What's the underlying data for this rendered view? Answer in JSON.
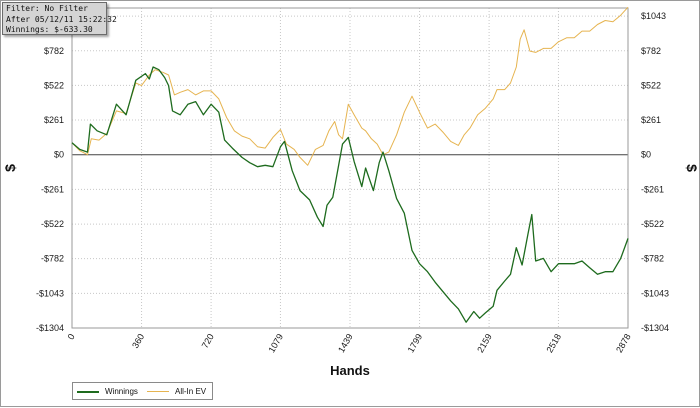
{
  "info_box": {
    "filter": "Filter: No Filter",
    "after": "After 05/12/11 15:22:32",
    "winnings": "Winnings: $-633.30"
  },
  "chart_data": {
    "type": "line",
    "xlabel": "Hands",
    "ylabel": "$",
    "xlim": [
      0,
      2878
    ],
    "ylim": [
      -1304,
      1104
    ],
    "x_ticks": [
      0,
      360,
      720,
      1079,
      1439,
      1799,
      2159,
      2518,
      2878
    ],
    "x_tick_labels": [
      "0",
      "360",
      "720",
      "1079",
      "1439",
      "1799",
      "2159",
      "2518",
      "2878"
    ],
    "y_ticks": [
      1043,
      782,
      522,
      261,
      0,
      -261,
      -522,
      -782,
      -1043,
      -1304
    ],
    "y_tick_labels": [
      "$1043",
      "$782",
      "$522",
      "$261",
      "$0",
      "-$261",
      "-$522",
      "-$782",
      "-$1043",
      "-$1304"
    ],
    "grid": true,
    "legend_position": "bottom-left",
    "series": [
      {
        "name": "Winnings",
        "color": "#1e6b1e",
        "points": [
          [
            0,
            90
          ],
          [
            40,
            40
          ],
          [
            80,
            20
          ],
          [
            95,
            230
          ],
          [
            130,
            180
          ],
          [
            180,
            150
          ],
          [
            230,
            380
          ],
          [
            280,
            300
          ],
          [
            330,
            560
          ],
          [
            380,
            610
          ],
          [
            400,
            570
          ],
          [
            420,
            660
          ],
          [
            450,
            640
          ],
          [
            480,
            580
          ],
          [
            500,
            520
          ],
          [
            520,
            330
          ],
          [
            560,
            300
          ],
          [
            600,
            380
          ],
          [
            640,
            400
          ],
          [
            680,
            300
          ],
          [
            720,
            380
          ],
          [
            760,
            320
          ],
          [
            790,
            110
          ],
          [
            830,
            50
          ],
          [
            880,
            -20
          ],
          [
            920,
            -60
          ],
          [
            960,
            -90
          ],
          [
            1000,
            -80
          ],
          [
            1040,
            -90
          ],
          [
            1079,
            60
          ],
          [
            1100,
            100
          ],
          [
            1140,
            -120
          ],
          [
            1180,
            -270
          ],
          [
            1230,
            -340
          ],
          [
            1270,
            -470
          ],
          [
            1300,
            -540
          ],
          [
            1320,
            -380
          ],
          [
            1350,
            -320
          ],
          [
            1400,
            80
          ],
          [
            1430,
            130
          ],
          [
            1460,
            -50
          ],
          [
            1500,
            -240
          ],
          [
            1520,
            -100
          ],
          [
            1560,
            -270
          ],
          [
            1590,
            -60
          ],
          [
            1610,
            20
          ],
          [
            1640,
            -120
          ],
          [
            1680,
            -330
          ],
          [
            1720,
            -440
          ],
          [
            1760,
            -720
          ],
          [
            1799,
            -820
          ],
          [
            1840,
            -880
          ],
          [
            1880,
            -960
          ],
          [
            1920,
            -1030
          ],
          [
            1960,
            -1100
          ],
          [
            2000,
            -1160
          ],
          [
            2040,
            -1260
          ],
          [
            2080,
            -1180
          ],
          [
            2110,
            -1230
          ],
          [
            2140,
            -1190
          ],
          [
            2180,
            -1140
          ],
          [
            2200,
            -1020
          ],
          [
            2240,
            -950
          ],
          [
            2270,
            -900
          ],
          [
            2300,
            -700
          ],
          [
            2330,
            -830
          ],
          [
            2360,
            -600
          ],
          [
            2380,
            -450
          ],
          [
            2400,
            -800
          ],
          [
            2440,
            -780
          ],
          [
            2480,
            -880
          ],
          [
            2518,
            -820
          ],
          [
            2560,
            -820
          ],
          [
            2600,
            -820
          ],
          [
            2640,
            -800
          ],
          [
            2680,
            -850
          ],
          [
            2720,
            -900
          ],
          [
            2760,
            -880
          ],
          [
            2800,
            -880
          ],
          [
            2840,
            -780
          ],
          [
            2878,
            -630
          ]
        ]
      },
      {
        "name": "All-In EV",
        "color": "#e6b450",
        "points": [
          [
            0,
            90
          ],
          [
            40,
            30
          ],
          [
            80,
            0
          ],
          [
            100,
            120
          ],
          [
            140,
            110
          ],
          [
            180,
            160
          ],
          [
            230,
            330
          ],
          [
            280,
            310
          ],
          [
            330,
            540
          ],
          [
            360,
            520
          ],
          [
            400,
            600
          ],
          [
            430,
            640
          ],
          [
            470,
            620
          ],
          [
            500,
            600
          ],
          [
            530,
            450
          ],
          [
            560,
            470
          ],
          [
            600,
            490
          ],
          [
            640,
            450
          ],
          [
            680,
            480
          ],
          [
            720,
            480
          ],
          [
            760,
            420
          ],
          [
            800,
            280
          ],
          [
            840,
            180
          ],
          [
            880,
            140
          ],
          [
            920,
            120
          ],
          [
            960,
            60
          ],
          [
            1000,
            50
          ],
          [
            1040,
            130
          ],
          [
            1079,
            190
          ],
          [
            1110,
            80
          ],
          [
            1150,
            40
          ],
          [
            1180,
            -20
          ],
          [
            1220,
            -80
          ],
          [
            1260,
            40
          ],
          [
            1300,
            70
          ],
          [
            1330,
            180
          ],
          [
            1360,
            250
          ],
          [
            1380,
            150
          ],
          [
            1400,
            120
          ],
          [
            1430,
            380
          ],
          [
            1460,
            300
          ],
          [
            1500,
            200
          ],
          [
            1520,
            180
          ],
          [
            1550,
            120
          ],
          [
            1580,
            80
          ],
          [
            1610,
            0
          ],
          [
            1640,
            20
          ],
          [
            1680,
            150
          ],
          [
            1720,
            320
          ],
          [
            1760,
            440
          ],
          [
            1799,
            320
          ],
          [
            1840,
            200
          ],
          [
            1880,
            230
          ],
          [
            1920,
            170
          ],
          [
            1960,
            100
          ],
          [
            2000,
            70
          ],
          [
            2030,
            150
          ],
          [
            2060,
            200
          ],
          [
            2100,
            300
          ],
          [
            2140,
            350
          ],
          [
            2180,
            420
          ],
          [
            2200,
            490
          ],
          [
            2240,
            490
          ],
          [
            2270,
            540
          ],
          [
            2300,
            660
          ],
          [
            2320,
            870
          ],
          [
            2340,
            940
          ],
          [
            2370,
            780
          ],
          [
            2400,
            770
          ],
          [
            2440,
            800
          ],
          [
            2480,
            800
          ],
          [
            2518,
            850
          ],
          [
            2560,
            880
          ],
          [
            2600,
            880
          ],
          [
            2640,
            930
          ],
          [
            2680,
            930
          ],
          [
            2720,
            980
          ],
          [
            2760,
            1010
          ],
          [
            2800,
            1000
          ],
          [
            2840,
            1050
          ],
          [
            2878,
            1110
          ]
        ]
      }
    ]
  }
}
